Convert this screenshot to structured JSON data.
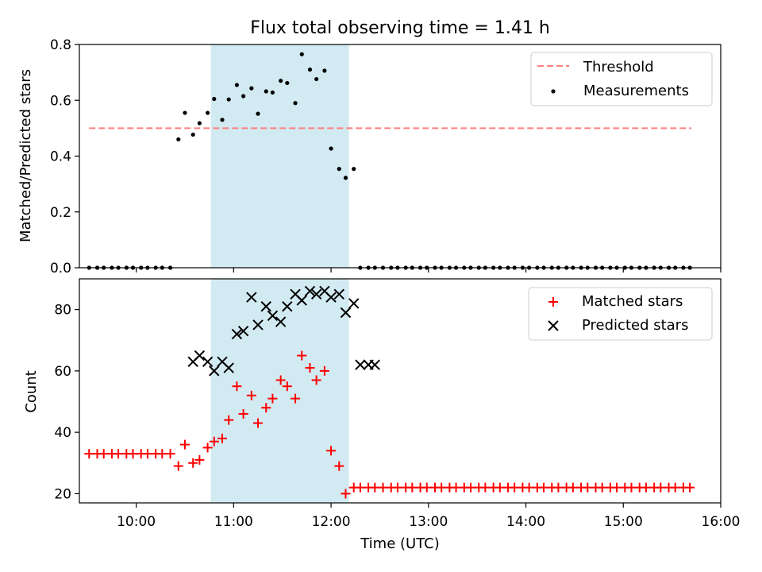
{
  "title": "Flux total observing time = 1.41 h",
  "chart_data": [
    {
      "type": "scatter",
      "panel": "top",
      "title": "Flux total observing time = 1.41 h",
      "xlabel": "",
      "ylabel": "Matched/Predicted stars",
      "xlim": [
        "09:25",
        "16:00"
      ],
      "ylim": [
        0,
        0.8
      ],
      "yticks": [
        0,
        0.2,
        0.4,
        0.6,
        0.8
      ],
      "ytick_labels": [
        "0.0",
        "0.2",
        "0.4",
        "0.6",
        "0.8"
      ],
      "shaded_interval": [
        "10:46",
        "12:11"
      ],
      "shaded_color": "#add8e6",
      "grid": false,
      "legend_position": "top-right",
      "threshold": {
        "name": "Threshold",
        "x": [
          "09:31",
          "15:42"
        ],
        "y": 0.5,
        "color": "#ff7f7f",
        "style": "dashed"
      },
      "series": [
        {
          "name": "Measurements",
          "color": "#000000",
          "marker": "dot",
          "x": [
            "09:31",
            "09:36",
            "09:40",
            "09:45",
            "09:49",
            "09:54",
            "09:58",
            "10:03",
            "10:07",
            "10:12",
            "10:16",
            "10:21",
            "10:26",
            "10:30",
            "10:35",
            "10:39",
            "10:44",
            "10:48",
            "10:53",
            "10:57",
            "11:02",
            "11:06",
            "11:11",
            "11:15",
            "11:20",
            "11:24",
            "11:29",
            "11:33",
            "11:38",
            "11:42",
            "11:47",
            "11:51",
            "11:56",
            "12:00",
            "12:05",
            "12:09",
            "12:14",
            "12:18",
            "12:23",
            "12:27",
            "12:32",
            "12:37",
            "12:41",
            "12:46",
            "12:50",
            "12:55",
            "12:59",
            "13:04",
            "13:08",
            "13:13",
            "13:17",
            "13:22",
            "13:26",
            "13:31",
            "13:35",
            "13:40",
            "13:44",
            "13:49",
            "13:53",
            "13:58",
            "14:02",
            "14:07",
            "14:11",
            "14:16",
            "14:20",
            "14:25",
            "14:29",
            "14:34",
            "14:38",
            "14:43",
            "14:47",
            "14:52",
            "14:56",
            "15:01",
            "15:05",
            "15:10",
            "15:14",
            "15:19",
            "15:23",
            "15:28",
            "15:32",
            "15:37",
            "15:41"
          ],
          "y": [
            0,
            0,
            0,
            0,
            0,
            0,
            0,
            0,
            0,
            0,
            0,
            0,
            0.46,
            0.555,
            0.477,
            0.518,
            0.555,
            0.605,
            0.53,
            0.603,
            0.655,
            0.615,
            0.643,
            0.552,
            0.632,
            0.628,
            0.67,
            0.662,
            0.59,
            0.765,
            0.71,
            0.676,
            0.706,
            0.427,
            0.354,
            0.322,
            0.354,
            0,
            0,
            0,
            0,
            0,
            0,
            0,
            0,
            0,
            0,
            0,
            0,
            0,
            0,
            0,
            0,
            0,
            0,
            0,
            0,
            0,
            0,
            0,
            0,
            0,
            0,
            0,
            0,
            0,
            0,
            0,
            0,
            0,
            0,
            0,
            0,
            0,
            0,
            0,
            0,
            0,
            0,
            0,
            0,
            0,
            0
          ]
        }
      ]
    },
    {
      "type": "scatter",
      "panel": "bottom",
      "title": "",
      "xlabel": "Time (UTC)",
      "ylabel": "Count",
      "xlim": [
        "09:25",
        "16:00"
      ],
      "ylim": [
        17,
        90
      ],
      "xticks": [
        "10:00",
        "11:00",
        "12:00",
        "13:00",
        "14:00",
        "15:00",
        "16:00"
      ],
      "yticks": [
        20,
        40,
        60,
        80
      ],
      "ytick_labels": [
        "20",
        "40",
        "60",
        "80"
      ],
      "shaded_interval": [
        "10:46",
        "12:11"
      ],
      "shaded_color": "#add8e6",
      "grid": false,
      "legend_position": "top-right",
      "series": [
        {
          "name": "Matched stars",
          "color": "#ff0000",
          "marker": "plus",
          "x": [
            "09:31",
            "09:36",
            "09:40",
            "09:45",
            "09:49",
            "09:54",
            "09:58",
            "10:03",
            "10:07",
            "10:12",
            "10:16",
            "10:21",
            "10:26",
            "10:30",
            "10:35",
            "10:39",
            "10:44",
            "10:48",
            "10:53",
            "10:57",
            "11:02",
            "11:06",
            "11:11",
            "11:15",
            "11:20",
            "11:24",
            "11:29",
            "11:33",
            "11:38",
            "11:42",
            "11:47",
            "11:51",
            "11:56",
            "12:00",
            "12:05",
            "12:09",
            "12:14",
            "12:18",
            "12:23",
            "12:27",
            "12:32",
            "12:37",
            "12:41",
            "12:46",
            "12:50",
            "12:55",
            "12:59",
            "13:04",
            "13:08",
            "13:13",
            "13:17",
            "13:22",
            "13:26",
            "13:31",
            "13:35",
            "13:40",
            "13:44",
            "13:49",
            "13:53",
            "13:58",
            "14:02",
            "14:07",
            "14:11",
            "14:16",
            "14:20",
            "14:25",
            "14:29",
            "14:34",
            "14:38",
            "14:43",
            "14:47",
            "14:52",
            "14:56",
            "15:01",
            "15:05",
            "15:10",
            "15:14",
            "15:19",
            "15:23",
            "15:28",
            "15:32",
            "15:37",
            "15:41"
          ],
          "y": [
            33,
            33,
            33,
            33,
            33,
            33,
            33,
            33,
            33,
            33,
            33,
            33,
            29,
            36,
            30,
            31,
            35,
            37,
            38,
            44,
            55,
            46,
            52,
            43,
            48,
            51,
            57,
            55,
            51,
            65,
            61,
            57,
            60,
            34,
            29,
            20,
            22,
            22,
            22,
            22,
            22,
            22,
            22,
            22,
            22,
            22,
            22,
            22,
            22,
            22,
            22,
            22,
            22,
            22,
            22,
            22,
            22,
            22,
            22,
            22,
            22,
            22,
            22,
            22,
            22,
            22,
            22,
            22,
            22,
            22,
            22,
            22,
            22,
            22,
            22,
            22,
            22,
            22,
            22,
            22,
            22,
            22,
            22
          ]
        },
        {
          "name": "Predicted stars",
          "color": "#000000",
          "marker": "x",
          "x": [
            "10:35",
            "10:39",
            "10:44",
            "10:48",
            "10:53",
            "10:57",
            "11:02",
            "11:06",
            "11:11",
            "11:15",
            "11:20",
            "11:24",
            "11:29",
            "11:33",
            "11:38",
            "11:42",
            "11:47",
            "11:51",
            "11:56",
            "12:00",
            "12:05",
            "12:09",
            "12:14",
            "12:18",
            "12:23",
            "12:27"
          ],
          "y": [
            63,
            65,
            63,
            60,
            63,
            61,
            72,
            73,
            84,
            75,
            81,
            78,
            76,
            81,
            85,
            83,
            86,
            85,
            86,
            84,
            85,
            79,
            82,
            62,
            62,
            62
          ]
        }
      ]
    }
  ]
}
